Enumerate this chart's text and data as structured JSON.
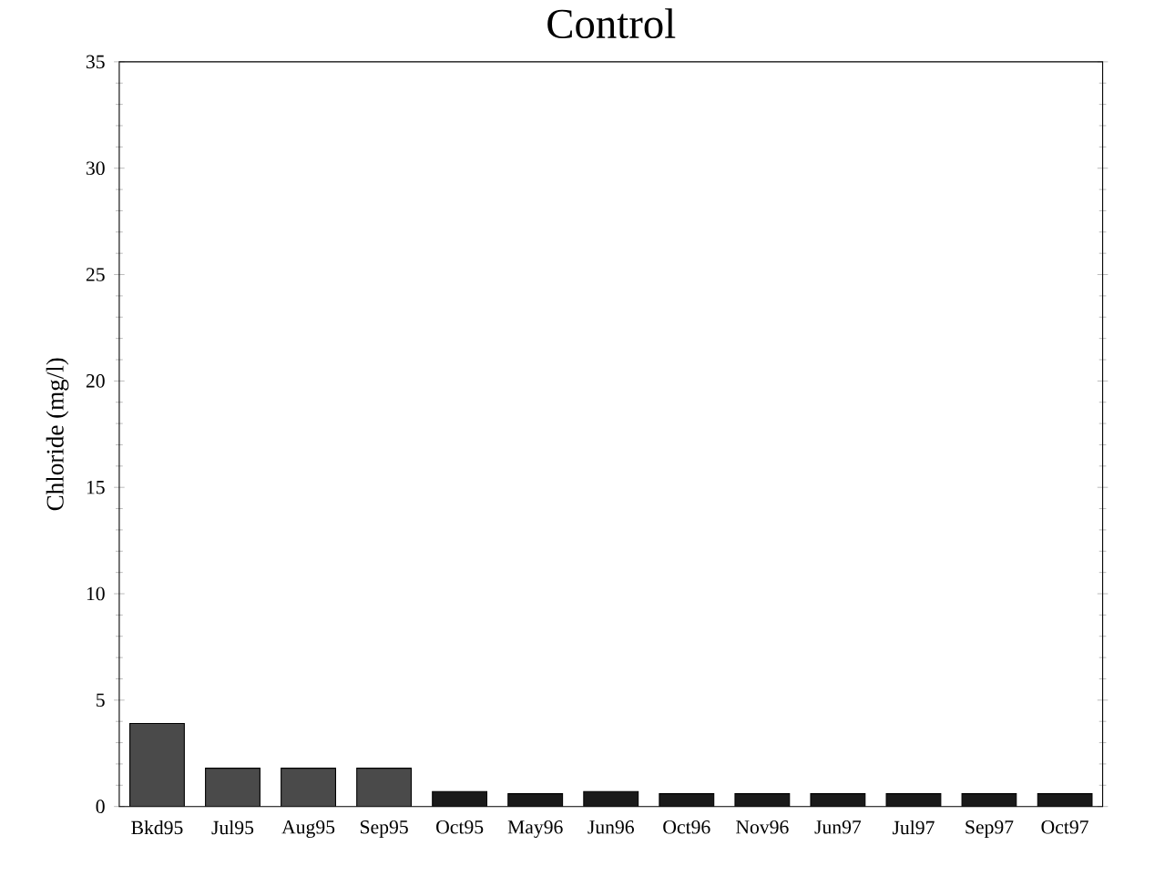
{
  "chart_data": {
    "type": "bar",
    "title": "Control",
    "ylabel": "Chloride   (mg/l)",
    "categories": [
      "Bkd95",
      "Jul95",
      "Aug95",
      "Sep95",
      "Oct95",
      "May96",
      "Jun96",
      "Oct96",
      "Nov96",
      "Jun97",
      "Jul97",
      "Sep97",
      "Oct97"
    ],
    "values": [
      3.9,
      1.8,
      1.8,
      1.8,
      0.7,
      0.6,
      0.7,
      0.6,
      0.6,
      0.6,
      0.6,
      0.6,
      0.6
    ],
    "colors": [
      "#4a4a4a",
      "#4a4a4a",
      "#4a4a4a",
      "#4a4a4a",
      "#1a1a1a",
      "#1a1a1a",
      "#1a1a1a",
      "#1a1a1a",
      "#1a1a1a",
      "#1a1a1a",
      "#1a1a1a",
      "#1a1a1a",
      "#1a1a1a"
    ],
    "ylim": [
      0,
      35
    ],
    "yticks": [
      0,
      5,
      10,
      15,
      20,
      25,
      30,
      35
    ],
    "grid": false
  }
}
